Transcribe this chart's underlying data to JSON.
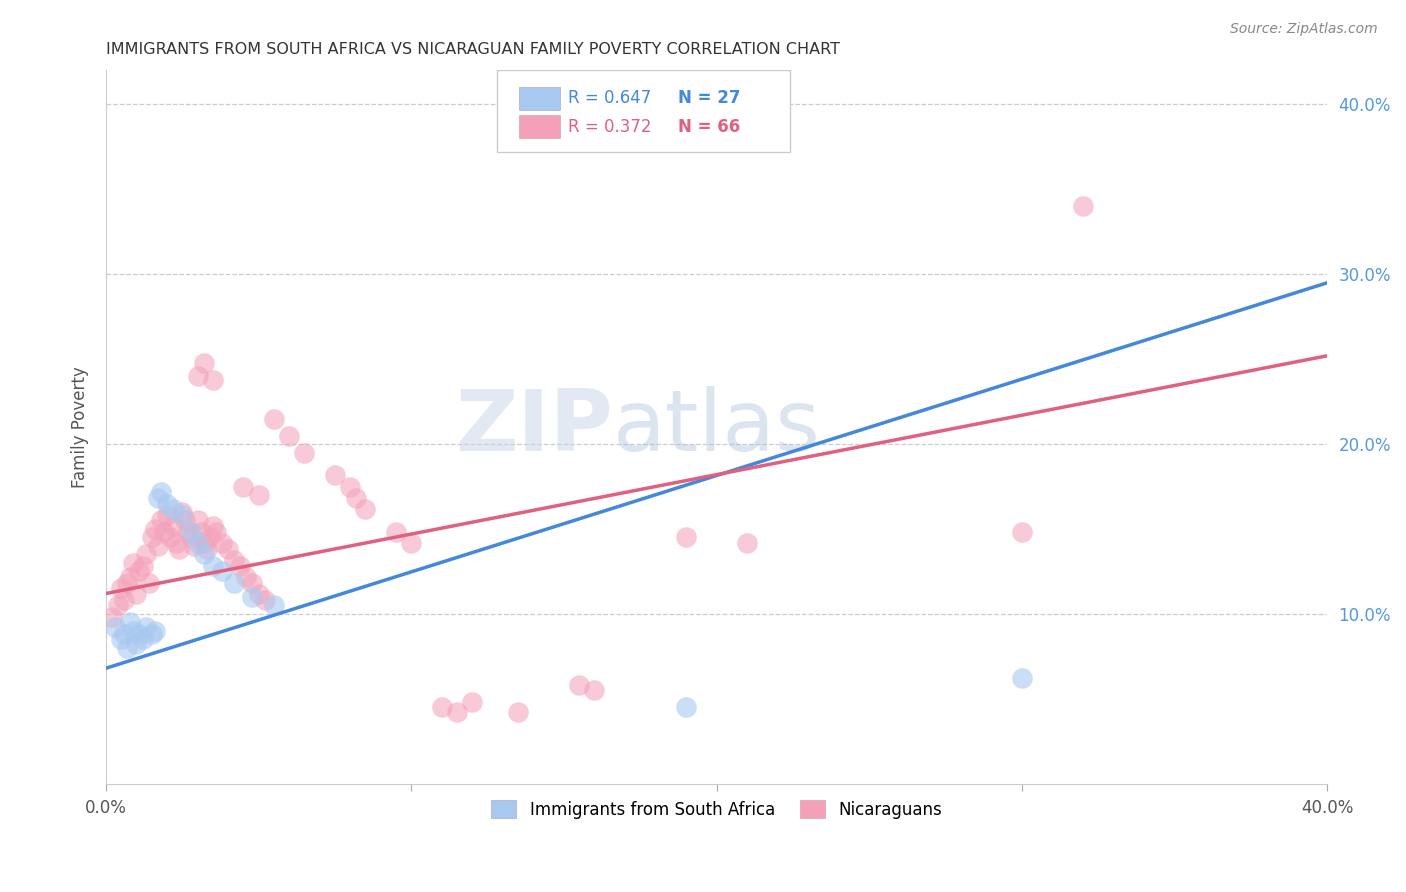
{
  "title": "IMMIGRANTS FROM SOUTH AFRICA VS NICARAGUAN FAMILY POVERTY CORRELATION CHART",
  "source": "Source: ZipAtlas.com",
  "ylabel": "Family Poverty",
  "xlim": [
    0.0,
    0.4
  ],
  "ylim": [
    0.0,
    0.42
  ],
  "legend_label1": "Immigrants from South Africa",
  "legend_label2": "Nicaraguans",
  "r1": 0.647,
  "n1": 27,
  "r2": 0.372,
  "n2": 66,
  "color_blue": "#A8C8F0",
  "color_pink": "#F4A0B8",
  "line_blue": "#4488DD",
  "line_pink": "#E06080",
  "watermark_zip": "ZIP",
  "watermark_atlas": "atlas",
  "blue_line_start": 0.068,
  "blue_line_end": 0.295,
  "pink_line_start": 0.112,
  "pink_line_end": 0.252,
  "blue_points": [
    [
      0.003,
      0.092
    ],
    [
      0.005,
      0.085
    ],
    [
      0.006,
      0.088
    ],
    [
      0.007,
      0.08
    ],
    [
      0.008,
      0.095
    ],
    [
      0.009,
      0.09
    ],
    [
      0.01,
      0.082
    ],
    [
      0.011,
      0.088
    ],
    [
      0.012,
      0.085
    ],
    [
      0.013,
      0.092
    ],
    [
      0.015,
      0.088
    ],
    [
      0.016,
      0.09
    ],
    [
      0.017,
      0.168
    ],
    [
      0.018,
      0.172
    ],
    [
      0.02,
      0.165
    ],
    [
      0.022,
      0.162
    ],
    [
      0.025,
      0.158
    ],
    [
      0.028,
      0.148
    ],
    [
      0.03,
      0.142
    ],
    [
      0.032,
      0.135
    ],
    [
      0.035,
      0.128
    ],
    [
      0.038,
      0.125
    ],
    [
      0.042,
      0.118
    ],
    [
      0.048,
      0.11
    ],
    [
      0.055,
      0.105
    ],
    [
      0.19,
      0.045
    ],
    [
      0.3,
      0.062
    ]
  ],
  "pink_points": [
    [
      0.002,
      0.098
    ],
    [
      0.004,
      0.105
    ],
    [
      0.005,
      0.115
    ],
    [
      0.006,
      0.108
    ],
    [
      0.007,
      0.118
    ],
    [
      0.008,
      0.122
    ],
    [
      0.009,
      0.13
    ],
    [
      0.01,
      0.112
    ],
    [
      0.011,
      0.125
    ],
    [
      0.012,
      0.128
    ],
    [
      0.013,
      0.135
    ],
    [
      0.014,
      0.118
    ],
    [
      0.015,
      0.145
    ],
    [
      0.016,
      0.15
    ],
    [
      0.017,
      0.14
    ],
    [
      0.018,
      0.155
    ],
    [
      0.019,
      0.148
    ],
    [
      0.02,
      0.158
    ],
    [
      0.021,
      0.145
    ],
    [
      0.022,
      0.152
    ],
    [
      0.023,
      0.142
    ],
    [
      0.024,
      0.138
    ],
    [
      0.025,
      0.16
    ],
    [
      0.026,
      0.155
    ],
    [
      0.027,
      0.148
    ],
    [
      0.028,
      0.145
    ],
    [
      0.029,
      0.14
    ],
    [
      0.03,
      0.155
    ],
    [
      0.031,
      0.148
    ],
    [
      0.032,
      0.142
    ],
    [
      0.033,
      0.138
    ],
    [
      0.034,
      0.145
    ],
    [
      0.035,
      0.152
    ],
    [
      0.036,
      0.148
    ],
    [
      0.038,
      0.142
    ],
    [
      0.04,
      0.138
    ],
    [
      0.042,
      0.132
    ],
    [
      0.044,
      0.128
    ],
    [
      0.046,
      0.122
    ],
    [
      0.048,
      0.118
    ],
    [
      0.05,
      0.112
    ],
    [
      0.052,
      0.108
    ],
    [
      0.03,
      0.24
    ],
    [
      0.032,
      0.248
    ],
    [
      0.035,
      0.238
    ],
    [
      0.055,
      0.215
    ],
    [
      0.06,
      0.205
    ],
    [
      0.065,
      0.195
    ],
    [
      0.045,
      0.175
    ],
    [
      0.05,
      0.17
    ],
    [
      0.075,
      0.182
    ],
    [
      0.08,
      0.175
    ],
    [
      0.082,
      0.168
    ],
    [
      0.085,
      0.162
    ],
    [
      0.095,
      0.148
    ],
    [
      0.1,
      0.142
    ],
    [
      0.11,
      0.045
    ],
    [
      0.115,
      0.042
    ],
    [
      0.12,
      0.048
    ],
    [
      0.135,
      0.042
    ],
    [
      0.155,
      0.058
    ],
    [
      0.16,
      0.055
    ],
    [
      0.19,
      0.145
    ],
    [
      0.21,
      0.142
    ],
    [
      0.3,
      0.148
    ],
    [
      0.32,
      0.34
    ]
  ]
}
